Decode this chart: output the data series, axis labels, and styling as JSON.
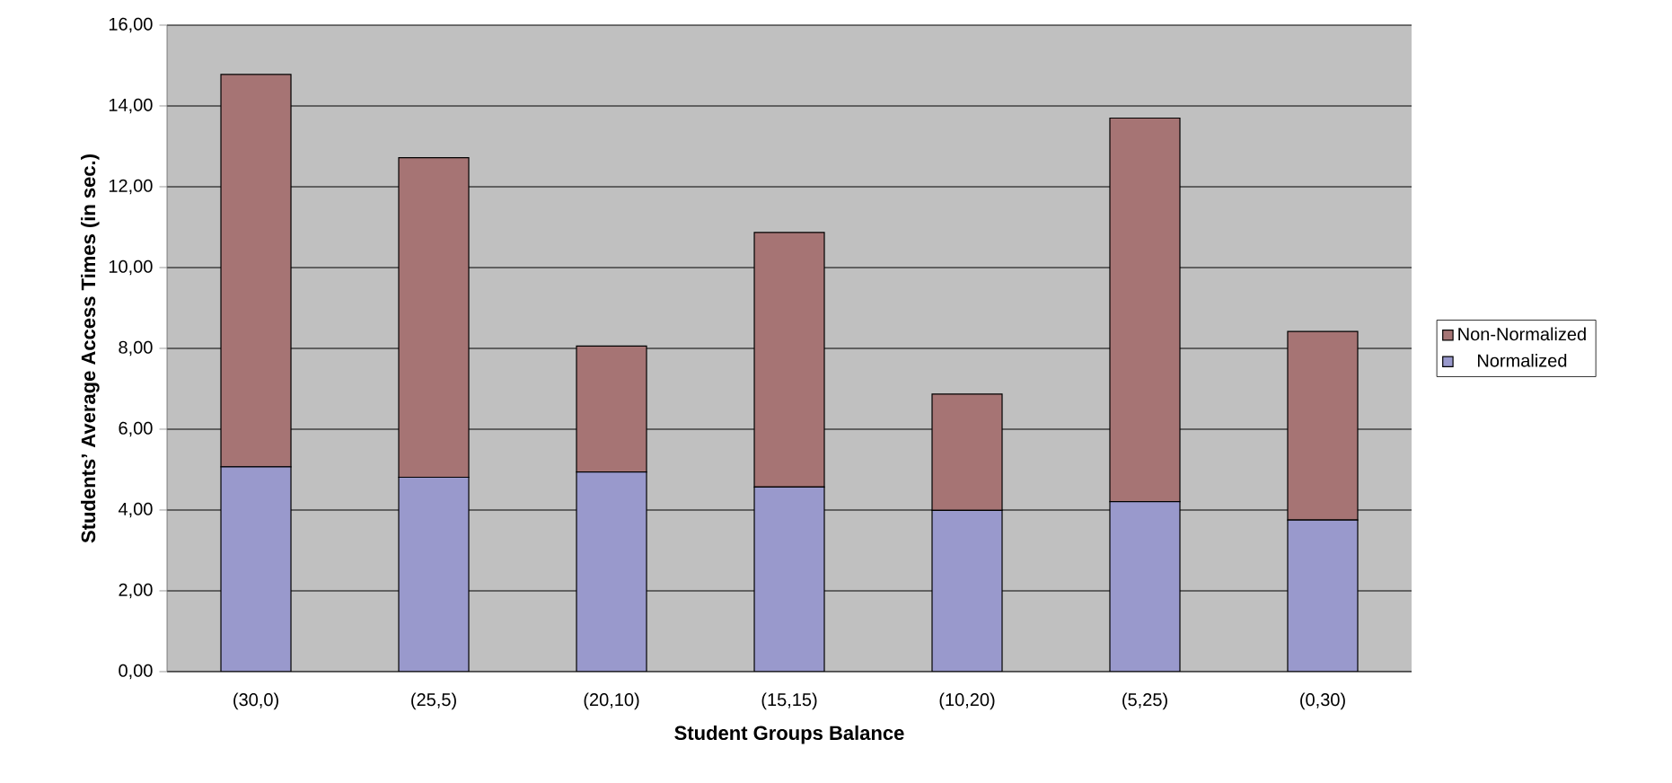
{
  "chart_data": {
    "type": "bar",
    "stacked": true,
    "xlabel": "Student Groups Balance",
    "ylabel": "Students’ Average Access Times (in sec.)",
    "categories": [
      "(30,0)",
      "(25,5)",
      "(20,10)",
      "(15,15)",
      "(10,20)",
      "(5,25)",
      "(0,30)"
    ],
    "series": [
      {
        "name": "Normalized",
        "color": "#9999cc",
        "values": [
          5.07,
          4.81,
          4.94,
          4.57,
          3.99,
          4.21,
          3.75
        ]
      },
      {
        "name": "Non-Normalized",
        "color": "#a67474",
        "values": [
          9.71,
          7.91,
          3.12,
          6.3,
          2.88,
          9.49,
          4.67
        ]
      }
    ],
    "ylim": [
      0,
      16
    ],
    "yticks": [
      {
        "value": 0,
        "label": "0,00"
      },
      {
        "value": 2,
        "label": "2,00"
      },
      {
        "value": 4,
        "label": "4,00"
      },
      {
        "value": 6,
        "label": "6,00"
      },
      {
        "value": 8,
        "label": "8,00"
      },
      {
        "value": 10,
        "label": "10,00"
      },
      {
        "value": 12,
        "label": "12,00"
      },
      {
        "value": 14,
        "label": "14,00"
      },
      {
        "value": 16,
        "label": "16,00"
      }
    ],
    "grid": "y",
    "legend": "right"
  }
}
